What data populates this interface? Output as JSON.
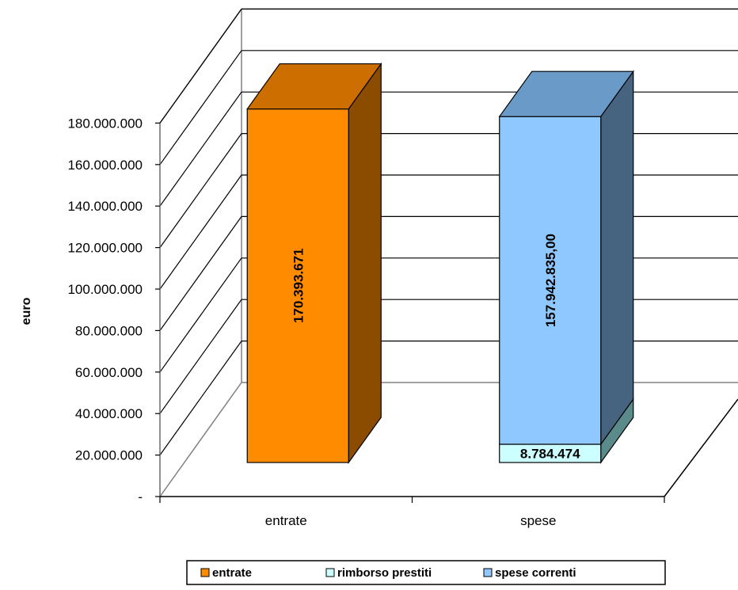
{
  "chart_data": {
    "type": "bar",
    "stacked": true,
    "three_d": true,
    "categories": [
      "entrate",
      "spese"
    ],
    "series": [
      {
        "name": "entrate",
        "values": [
          170393671,
          0
        ],
        "color": "#FF8C00",
        "side_color": "#8B4C00",
        "top_color": "#CC6E00"
      },
      {
        "name": "rimborso prestiti",
        "values": [
          0,
          8784474
        ],
        "color": "#CCFFFF",
        "side_color": "#5A8A8A",
        "top_color": "#99CCCC"
      },
      {
        "name": "spese correnti",
        "values": [
          0,
          157942835
        ],
        "color": "#8FC8FF",
        "side_color": "#466480",
        "top_color": "#6A9BC8"
      }
    ],
    "data_labels": [
      {
        "category": "entrate",
        "series": "entrate",
        "text": "170.393.671"
      },
      {
        "category": "spese",
        "series": "rimborso prestiti",
        "text": "8.784.474"
      },
      {
        "category": "spese",
        "series": "spese correnti",
        "text": "157.942.835,00"
      }
    ],
    "ylabel": "euro",
    "ylim": [
      0,
      180000000
    ],
    "yticks": [
      0,
      20000000,
      40000000,
      60000000,
      80000000,
      100000000,
      120000000,
      140000000,
      160000000,
      180000000
    ],
    "ytick_labels": [
      "-",
      "20.000.000",
      "40.000.000",
      "60.000.000",
      "80.000.000",
      "100.000.000",
      "120.000.000",
      "140.000.000",
      "160.000.000",
      "180.000.000"
    ],
    "grid": true,
    "legend_position": "bottom"
  }
}
